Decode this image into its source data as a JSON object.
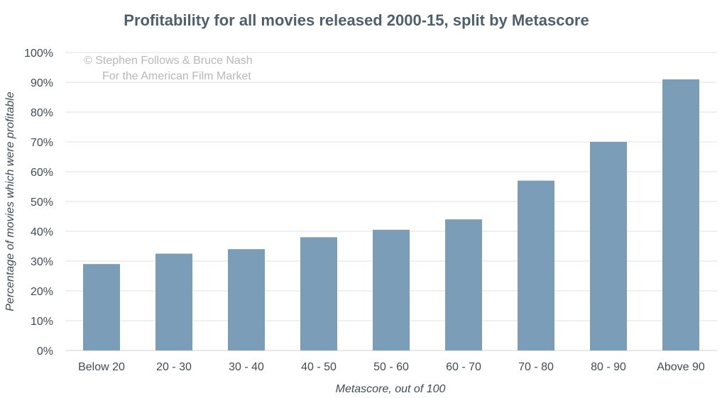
{
  "chart_data": {
    "type": "bar",
    "title": "Profitability for all movies released 2000-15, split by Metascore",
    "xlabel": "Metascore, out of 100",
    "ylabel": "Percentage of movies which were profitable",
    "categories": [
      "Below 20",
      "20 - 30",
      "30 - 40",
      "40 - 50",
      "50 - 60",
      "60 - 70",
      "70 - 80",
      "80 - 90",
      "Above 90"
    ],
    "values": [
      29,
      32.5,
      34,
      38,
      40.5,
      44,
      57,
      70,
      91
    ],
    "ylim": [
      0,
      100
    ],
    "yticks": [
      "0%",
      "10%",
      "20%",
      "30%",
      "40%",
      "50%",
      "60%",
      "70%",
      "80%",
      "90%",
      "100%"
    ],
    "grid": true,
    "bar_color": "#7b9db8"
  },
  "watermark": {
    "line1": "© Stephen Follows & Bruce Nash",
    "line2": "For the American Film Market"
  }
}
